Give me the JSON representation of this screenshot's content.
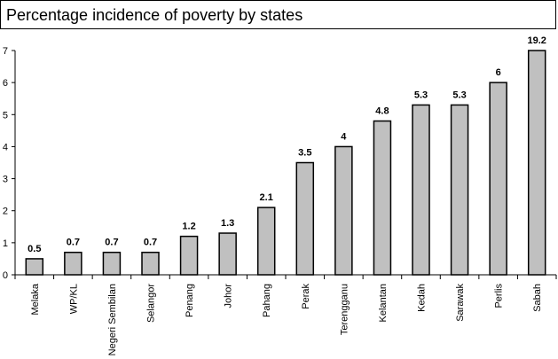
{
  "chart_data": {
    "type": "bar",
    "title": "Percentage incidence of poverty by states",
    "xlabel": "",
    "ylabel": "",
    "categories": [
      "Melaka",
      "WP/KL",
      "Negeri Sembilan",
      "Selangor",
      "Penang",
      "Johor",
      "Pahang",
      "Perak",
      "Terengganu",
      "Kelantan",
      "Kedah",
      "Sarawak",
      "Perlis",
      "Sabah"
    ],
    "values": [
      0.5,
      0.7,
      0.7,
      0.7,
      1.2,
      1.3,
      2.1,
      3.5,
      4,
      4.8,
      5.3,
      5.3,
      6,
      19.2
    ],
    "data_labels": [
      "0.5",
      "0.7",
      "0.7",
      "0.7",
      "1.2",
      "1.3",
      "2.1",
      "3.5",
      "4",
      "4.8",
      "5.3",
      "5.3",
      "6",
      "19.2"
    ],
    "yticks": [
      "0",
      "1",
      "2",
      "3",
      "4",
      "5",
      "6",
      "7"
    ],
    "ylim": [
      0,
      7
    ],
    "clipped_at_axis_max": true,
    "grid": false,
    "legend": "none",
    "colors": {
      "bar_fill": "#c0c0c0",
      "bar_stroke": "#000000",
      "axis": "#000000",
      "text": "#000000"
    }
  }
}
